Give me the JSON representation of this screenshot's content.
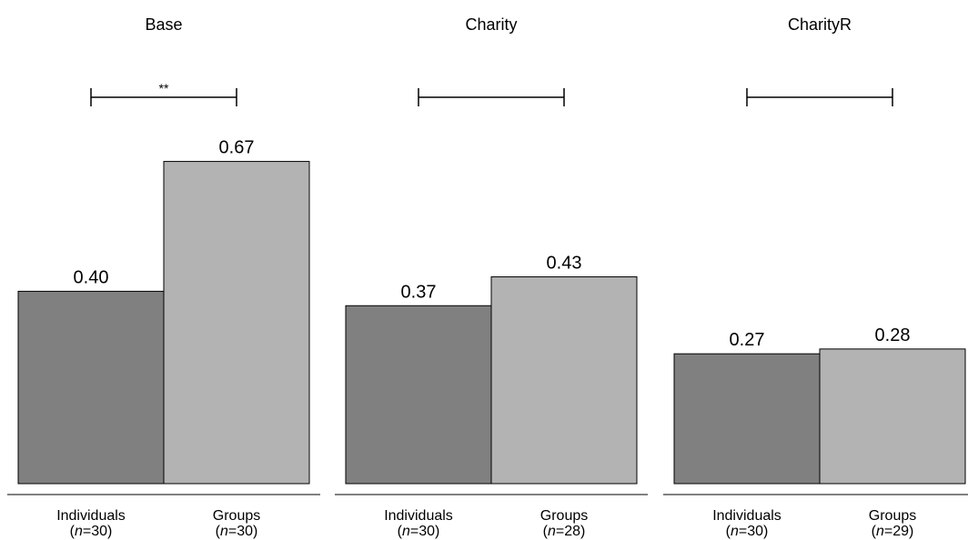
{
  "chart_data": [
    {
      "type": "bar",
      "title": "Base",
      "categories": [
        "Individuals",
        "Groups"
      ],
      "n": [
        "30",
        "30"
      ],
      "values": [
        0.4,
        0.67
      ],
      "value_labels": [
        "0.40",
        "0.67"
      ],
      "significance": "**",
      "ylim": [
        0,
        0.8
      ],
      "colors": [
        "#808080",
        "#b3b3b3"
      ]
    },
    {
      "type": "bar",
      "title": "Charity",
      "categories": [
        "Individuals",
        "Groups"
      ],
      "n": [
        "30",
        "28"
      ],
      "values": [
        0.37,
        0.43
      ],
      "value_labels": [
        "0.37",
        "0.43"
      ],
      "significance": "",
      "ylim": [
        0,
        0.8
      ],
      "colors": [
        "#808080",
        "#b3b3b3"
      ]
    },
    {
      "type": "bar",
      "title": "CharityR",
      "categories": [
        "Individuals",
        "Groups"
      ],
      "n": [
        "30",
        "29"
      ],
      "values": [
        0.27,
        0.28
      ],
      "value_labels": [
        "0.27",
        "0.28"
      ],
      "significance": "",
      "ylim": [
        0,
        0.8
      ],
      "colors": [
        "#808080",
        "#b3b3b3"
      ]
    }
  ],
  "n_prefix": "n",
  "n_separator": "="
}
